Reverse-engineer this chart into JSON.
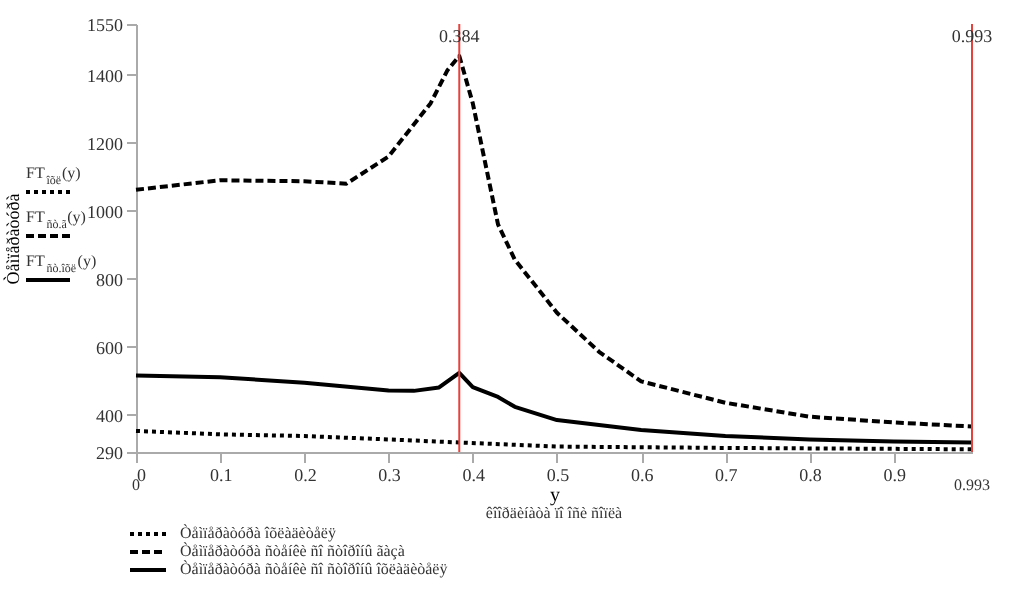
{
  "chart_data": {
    "type": "line",
    "ylabel": "Òåìïåðàòóðà",
    "xlabel": "y",
    "xlim": [
      0,
      0.993
    ],
    "xticks": [
      0,
      0.1,
      0.2,
      0.3,
      0.4,
      0.5,
      0.6,
      0.7,
      0.8,
      0.9
    ],
    "ylim": [
      290,
      1550
    ],
    "yticks": [
      290,
      400,
      600,
      800,
      1000,
      1200,
      1400,
      1550
    ],
    "grid": false,
    "legend": "bottom",
    "series": [
      {
        "name": "Òåìïåðàòóðà îõëàäèòåëÿ",
        "color": "#000000",
        "line_style": "dotted",
        "x": [
          0,
          0.1,
          0.2,
          0.3,
          0.384,
          0.5,
          0.7,
          0.993
        ],
        "values": [
          352,
          342,
          337,
          327,
          318,
          306,
          302,
          298
        ]
      },
      {
        "name": "Òåìïåðàòóðà ñòåíêè ñî ñòîðîíû ãàçà",
        "color": "#000000",
        "line_style": "dashed",
        "x": [
          0,
          0.1,
          0.2,
          0.25,
          0.3,
          0.35,
          0.37,
          0.384,
          0.4,
          0.43,
          0.45,
          0.5,
          0.55,
          0.6,
          0.7,
          0.8,
          0.9,
          0.993
        ],
        "values": [
          1062,
          1090,
          1087,
          1080,
          1160,
          1317,
          1414,
          1456,
          1317,
          960,
          856,
          700,
          585,
          498,
          435,
          394,
          377,
          365
        ]
      },
      {
        "name": "Òåìïåðàòóðà ñòåíêè ñî ñòîðîíû îõëàäèòåëÿ",
        "color": "#000000",
        "line_style": "solid",
        "x": [
          0,
          0.1,
          0.2,
          0.3,
          0.33,
          0.36,
          0.384,
          0.4,
          0.43,
          0.45,
          0.5,
          0.6,
          0.7,
          0.8,
          0.9,
          0.993
        ],
        "values": [
          515,
          510,
          494,
          471,
          470,
          480,
          523,
          481,
          452,
          423,
          384,
          355,
          337,
          327,
          321,
          318
        ]
      }
    ],
    "ref_lines": [
      {
        "axis": "x",
        "value": 0.384,
        "label": "0.384",
        "color": "#e8413c"
      },
      {
        "axis": "x",
        "value": 0.993,
        "label": "0.993",
        "color": "#e8413c"
      }
    ],
    "annotations": [
      "êîîðäèíàòà ïî îñè ñîïëà",
      "FT$_{îõë}$(y)",
      "FT$_{ñò.ã}$(y)",
      "FT$_{ñò.îõë}$(y)",
      "0",
      "0.993"
    ]
  }
}
